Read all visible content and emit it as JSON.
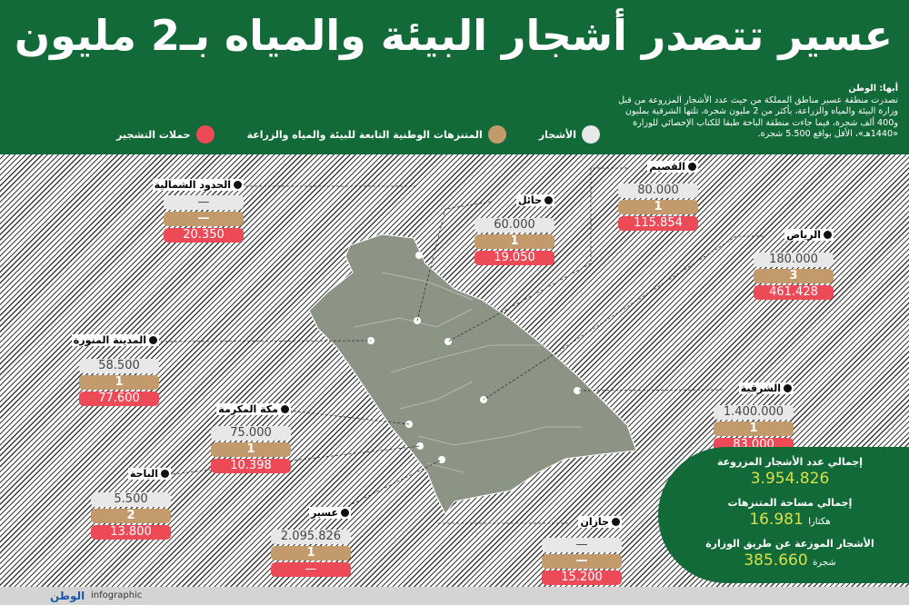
{
  "title": "عسير تتصدر أشجار البيئة والمياه بـ2 مليون",
  "intro": {
    "byline": "أبها: الوطن",
    "text": "تصدرت منطقة عسير مناطق المملكة من حيث عدد الأشجار المزروعة من قبل وزارة البيئة والمياه والزراعة، بأكثر من 2 مليون شجرة، تلتها الشرقية بمليون و400 ألف شجرة، فيما جاءت منطقة الباحة طبقا للكتاب الإحصائي للوزارة «1440هـ»، الأقل بواقع 5.500 شجرة."
  },
  "legend": [
    {
      "label": "الأشجار",
      "color": "#e8e8e8"
    },
    {
      "label": "المتنزهات الوطنية التابعة للبيئة والمياه والزراعة",
      "color": "#c29a6b"
    },
    {
      "label": "حملات التشجير",
      "color": "#ec4a57"
    }
  ],
  "regions": [
    {
      "name": "الحدود الشمالية",
      "trees": "—",
      "parks": "—",
      "campaigns": "20.350"
    },
    {
      "name": "حائل",
      "trees": "60.000",
      "parks": "1",
      "campaigns": "19.050"
    },
    {
      "name": "القصيم",
      "trees": "80.000",
      "parks": "1",
      "campaigns": "115.854"
    },
    {
      "name": "الرياض",
      "trees": "180.000",
      "parks": "3",
      "campaigns": "461.428"
    },
    {
      "name": "المدينة المنورة",
      "trees": "58.500",
      "parks": "1",
      "campaigns": "77.600"
    },
    {
      "name": "مكة المكرمة",
      "trees": "75.000",
      "parks": "1",
      "campaigns": "10.398"
    },
    {
      "name": "الشرقية",
      "trees": "1.400.000",
      "parks": "1",
      "campaigns": "83.000"
    },
    {
      "name": "الباحة",
      "trees": "5.500",
      "parks": "2",
      "campaigns": "13.800"
    },
    {
      "name": "عسير",
      "trees": "2.095.826",
      "parks": "1",
      "campaigns": "—"
    },
    {
      "name": "جازان",
      "trees": "—",
      "parks": "—",
      "campaigns": "15.200"
    }
  ],
  "summary": {
    "total_trees_label": "إجمالي عدد الأشجار المزروعة",
    "total_trees": "3.954.826",
    "parks_area_label": "إجمالي مساحة المتنزهات",
    "parks_area": "16.981",
    "parks_area_unit": "هكتارا",
    "distributed_label": "الأشجار الموزعة عن طريق الوزارة",
    "distributed": "385.660",
    "distributed_unit": "شجرة"
  },
  "footer": {
    "logo": "الوطن",
    "text": "infographic"
  }
}
